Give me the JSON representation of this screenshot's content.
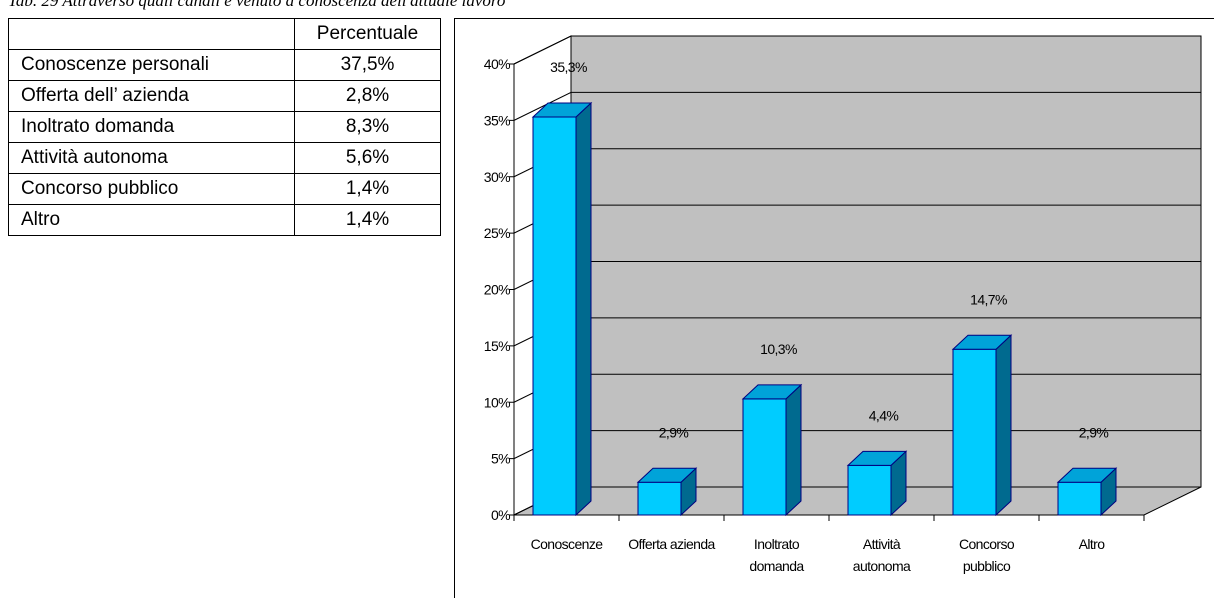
{
  "caption": "Tab. 29 Attraverso quali canali è venuto a conoscenza dell'attuale lavoro",
  "table": {
    "header": [
      "",
      "Percentuale"
    ],
    "rows": [
      {
        "label": "Conoscenze personali",
        "value": "37,5%"
      },
      {
        "label": "Offerta dell’ azienda",
        "value": "2,8%"
      },
      {
        "label": "Inoltrato domanda",
        "value": "8,3%"
      },
      {
        "label": "Attività autonoma",
        "value": "5,6%"
      },
      {
        "label": "Concorso pubblico",
        "value": "1,4%"
      },
      {
        "label": "Altro",
        "value": "1,4%"
      }
    ]
  },
  "chart_data": {
    "type": "bar",
    "categories": [
      [
        "Conoscenze"
      ],
      [
        "Offerta azienda"
      ],
      [
        "Inoltrato",
        "domanda"
      ],
      [
        "Attività",
        "autonoma"
      ],
      [
        "Concorso",
        "pubblico"
      ],
      [
        "Altro"
      ]
    ],
    "values": [
      35.3,
      2.9,
      10.3,
      4.4,
      14.7,
      2.9
    ],
    "data_labels": [
      "35,3%",
      "2,9%",
      "10,3%",
      "4,4%",
      "14,7%",
      "2,9%"
    ],
    "y_ticks": [
      0,
      5,
      10,
      15,
      20,
      25,
      30,
      35,
      40
    ],
    "y_tick_labels": [
      "0%",
      "5%",
      "10%",
      "15%",
      "20%",
      "25%",
      "30%",
      "35%",
      "40%"
    ],
    "ylim": [
      0,
      40
    ],
    "grid": true,
    "legend": "none",
    "three_d": true,
    "colors": {
      "bar_front": "#00CCFF",
      "bar_top": "#00A3D9",
      "bar_side": "#006A8F",
      "bar_edge": "#000080",
      "back_wall": "#C0C0C0",
      "floor": "#C0C0C0",
      "axis": "#000000"
    }
  }
}
